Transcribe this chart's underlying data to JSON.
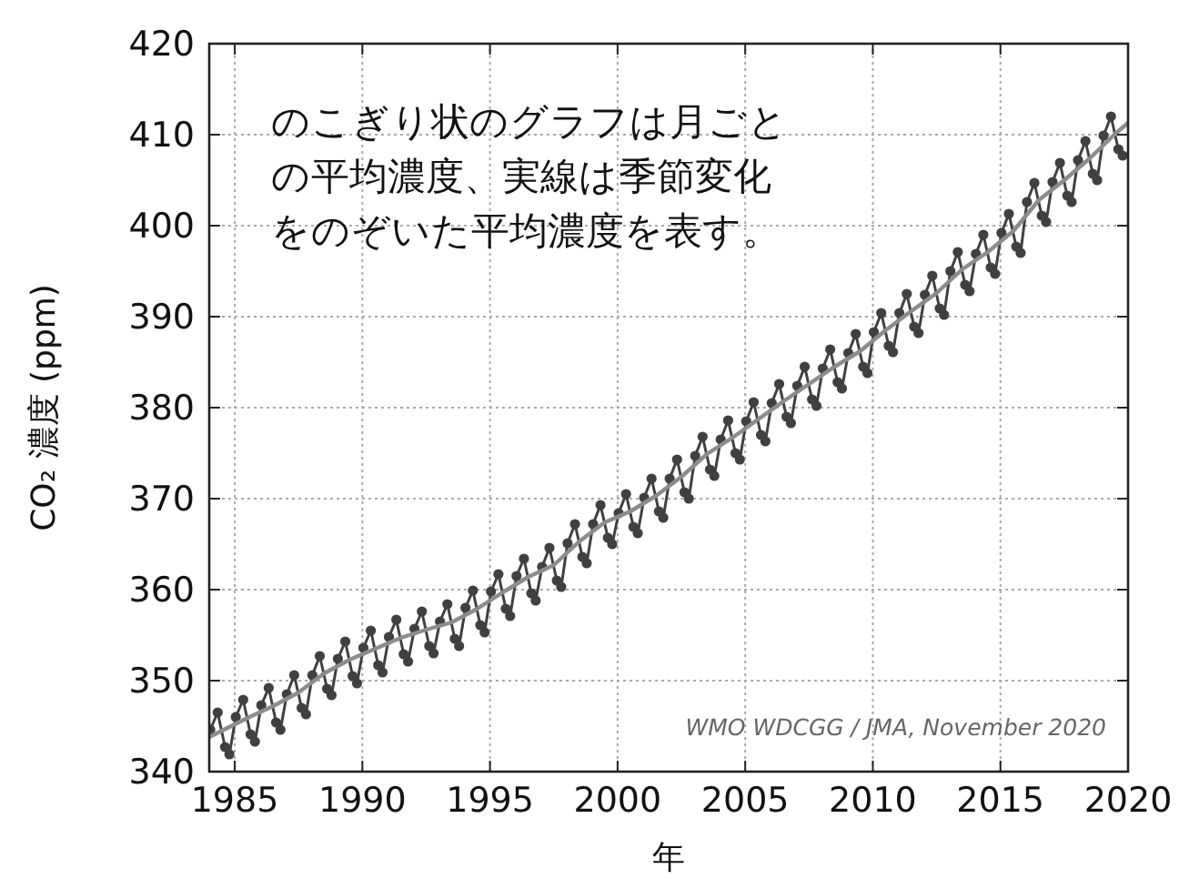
{
  "chart_data": {
    "type": "line",
    "xlabel": "年",
    "ylabel": "CO₂ 濃度 (ppm)",
    "annotations": [
      "のこぎり状のグラフは月ごとの平均濃度、実線は季節変化をのぞいた平均濃度を表す。",
      "WMO WDCGG / JMA, November 2020"
    ],
    "xlim": [
      1984,
      2020
    ],
    "ylim": [
      340,
      420
    ],
    "xticks": [
      1985,
      1990,
      1995,
      2000,
      2005,
      2010,
      2015,
      2020
    ],
    "yticks": [
      340,
      350,
      360,
      370,
      380,
      390,
      400,
      410,
      420
    ],
    "grid": true,
    "series": [
      {
        "color": "#404040",
        "marker": "circle",
        "x": [
          1984.04,
          1984.33,
          1984.62,
          1984.79,
          1985.04,
          1985.33,
          1985.62,
          1985.79,
          1986.04,
          1986.33,
          1986.62,
          1986.79,
          1987.04,
          1987.33,
          1987.62,
          1987.79,
          1988.04,
          1988.33,
          1988.62,
          1988.79,
          1989.04,
          1989.33,
          1989.62,
          1989.79,
          1990.04,
          1990.33,
          1990.62,
          1990.79,
          1991.04,
          1991.33,
          1991.62,
          1991.79,
          1992.04,
          1992.33,
          1992.62,
          1992.79,
          1993.04,
          1993.33,
          1993.62,
          1993.79,
          1994.04,
          1994.33,
          1994.62,
          1994.79,
          1995.04,
          1995.33,
          1995.62,
          1995.79,
          1996.04,
          1996.33,
          1996.62,
          1996.79,
          1997.04,
          1997.33,
          1997.62,
          1997.79,
          1998.04,
          1998.33,
          1998.62,
          1998.79,
          1999.04,
          1999.33,
          1999.62,
          1999.79,
          2000.04,
          2000.33,
          2000.62,
          2000.79,
          2001.04,
          2001.33,
          2001.62,
          2001.79,
          2002.04,
          2002.33,
          2002.62,
          2002.79,
          2003.04,
          2003.33,
          2003.62,
          2003.79,
          2004.04,
          2004.33,
          2004.62,
          2004.79,
          2005.04,
          2005.33,
          2005.62,
          2005.79,
          2006.04,
          2006.33,
          2006.62,
          2006.79,
          2007.04,
          2007.33,
          2007.62,
          2007.79,
          2008.04,
          2008.33,
          2008.62,
          2008.79,
          2009.04,
          2009.33,
          2009.62,
          2009.79,
          2010.04,
          2010.33,
          2010.62,
          2010.79,
          2011.04,
          2011.33,
          2011.62,
          2011.79,
          2012.04,
          2012.33,
          2012.62,
          2012.79,
          2013.04,
          2013.33,
          2013.62,
          2013.79,
          2014.04,
          2014.33,
          2014.62,
          2014.79,
          2015.04,
          2015.33,
          2015.62,
          2015.79,
          2016.04,
          2016.33,
          2016.62,
          2016.79,
          2017.04,
          2017.33,
          2017.62,
          2017.79,
          2018.04,
          2018.33,
          2018.62,
          2018.79,
          2019.04,
          2019.33,
          2019.62,
          2019.79
        ],
        "values": [
          344.6,
          346.5,
          342.7,
          341.9,
          346.0,
          347.9,
          344.1,
          343.3,
          347.3,
          349.2,
          345.4,
          344.6,
          348.5,
          350.6,
          347.0,
          346.3,
          350.6,
          352.7,
          349.1,
          348.4,
          352.4,
          354.3,
          350.5,
          349.7,
          353.6,
          355.5,
          351.7,
          350.9,
          354.8,
          356.7,
          352.9,
          352.1,
          355.7,
          357.6,
          353.8,
          353.0,
          356.5,
          358.4,
          354.6,
          353.8,
          358.0,
          359.9,
          356.1,
          355.3,
          359.8,
          361.7,
          357.9,
          357.1,
          361.5,
          363.4,
          359.6,
          358.8,
          362.5,
          364.6,
          361.0,
          360.3,
          365.1,
          367.2,
          363.6,
          362.9,
          367.2,
          369.3,
          365.7,
          365.0,
          368.4,
          370.5,
          366.9,
          366.2,
          370.1,
          372.2,
          368.6,
          367.9,
          372.2,
          374.3,
          370.7,
          370.0,
          374.7,
          376.8,
          373.2,
          372.5,
          376.5,
          378.6,
          375.0,
          374.3,
          378.5,
          380.6,
          377.0,
          376.3,
          380.5,
          382.6,
          379.0,
          378.3,
          382.4,
          384.5,
          380.9,
          380.2,
          384.3,
          386.4,
          382.8,
          382.1,
          386.0,
          388.1,
          384.5,
          383.8,
          388.3,
          390.4,
          386.8,
          386.1,
          390.4,
          392.5,
          388.9,
          388.2,
          392.4,
          394.5,
          390.9,
          390.2,
          395.0,
          397.1,
          393.5,
          392.8,
          396.9,
          399.0,
          395.4,
          394.7,
          399.2,
          401.3,
          397.7,
          397.0,
          402.6,
          404.7,
          401.1,
          400.4,
          404.8,
          406.9,
          403.3,
          402.6,
          407.2,
          409.3,
          405.7,
          405.0,
          409.9,
          412.0,
          408.4,
          407.7
        ]
      },
      {
        "color": "#8c8c8c",
        "marker": "none",
        "x": [
          1984.0,
          1984.5,
          1985.5,
          1986.5,
          1987.5,
          1988.5,
          1989.5,
          1990.5,
          1991.5,
          1992.5,
          1993.5,
          1994.5,
          1995.5,
          1996.5,
          1997.5,
          1998.5,
          1999.5,
          2000.5,
          2001.5,
          2002.5,
          2003.5,
          2004.5,
          2005.5,
          2006.5,
          2007.5,
          2008.5,
          2009.5,
          2010.5,
          2011.5,
          2012.5,
          2013.5,
          2014.5,
          2015.5,
          2016.5,
          2017.5,
          2018.5,
          2019.5,
          2020.0
        ],
        "values": [
          343.8,
          344.5,
          345.9,
          347.2,
          348.7,
          350.8,
          352.3,
          353.5,
          354.7,
          355.6,
          356.4,
          357.9,
          359.7,
          361.4,
          362.7,
          365.3,
          367.4,
          368.6,
          370.3,
          372.4,
          374.9,
          376.7,
          378.7,
          380.7,
          382.6,
          384.5,
          386.2,
          388.5,
          390.6,
          392.6,
          395.2,
          397.1,
          399.4,
          402.8,
          405.0,
          407.4,
          410.1,
          411.3
        ]
      }
    ]
  }
}
